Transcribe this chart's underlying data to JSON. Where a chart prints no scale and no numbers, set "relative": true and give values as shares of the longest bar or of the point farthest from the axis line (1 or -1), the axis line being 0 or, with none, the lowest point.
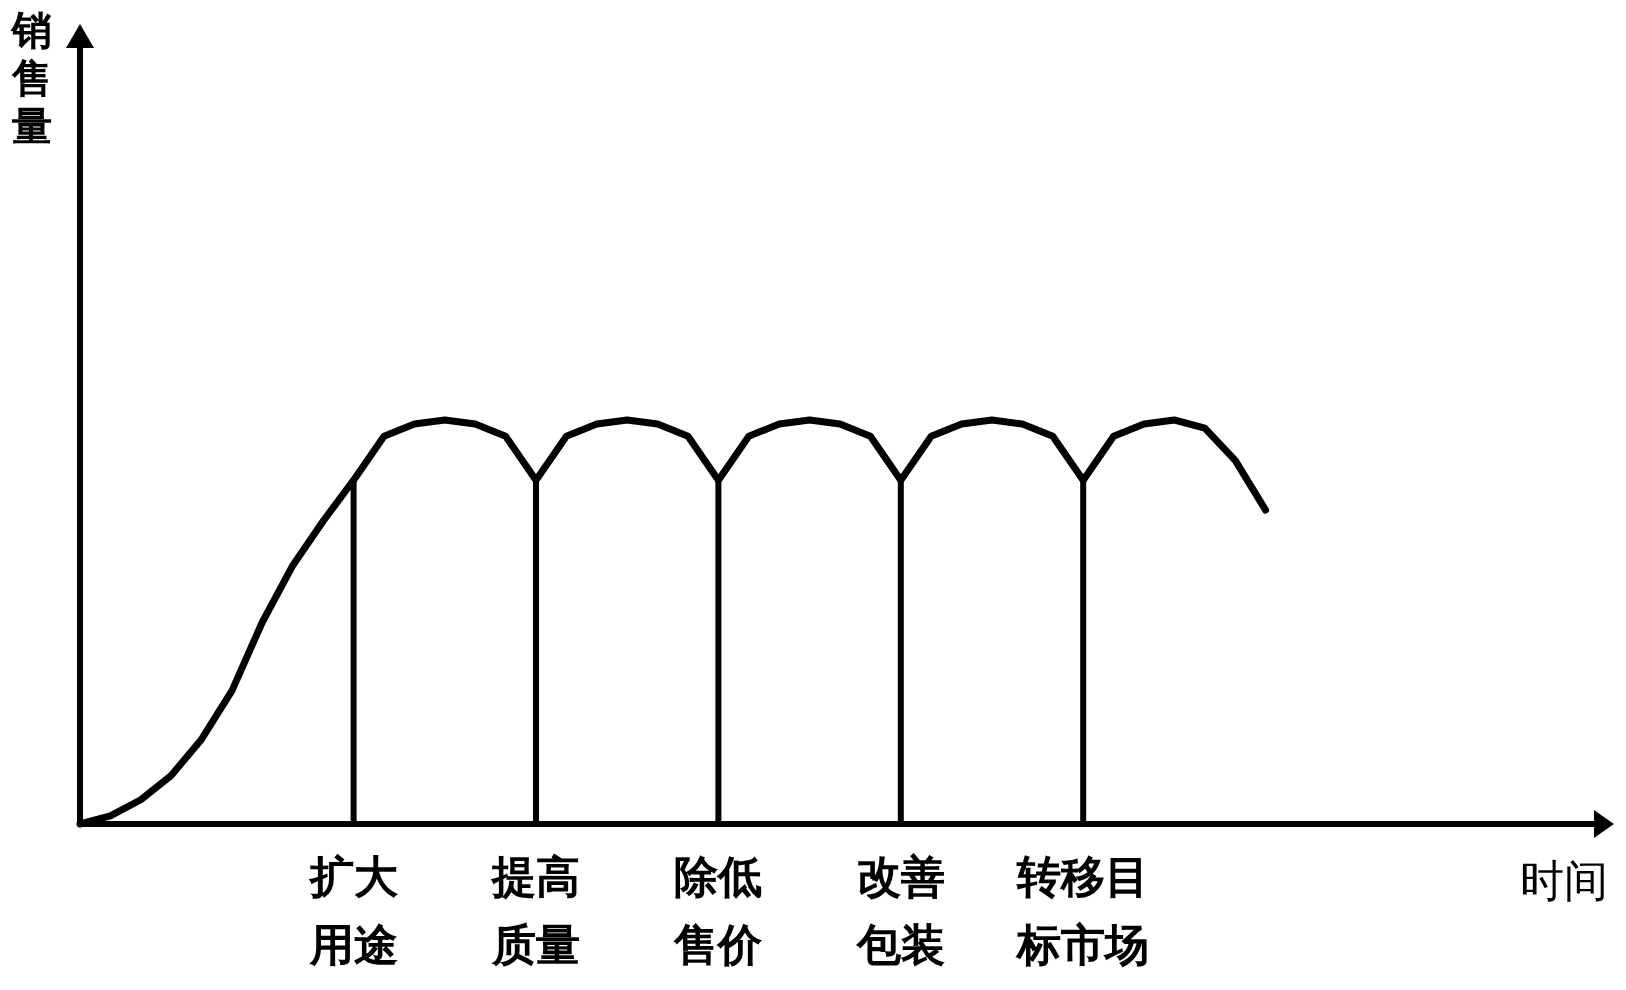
{
  "chart_data": {
    "type": "line",
    "relative": true,
    "annotations": [
      "销售量",
      "时间"
    ],
    "categories": [
      null,
      null,
      null,
      null,
      null,
      null,
      null,
      null,
      null,
      "扩大用途",
      null,
      null,
      null,
      null,
      null,
      "提高质量",
      null,
      null,
      null,
      null,
      null,
      "除低售价",
      null,
      null,
      null,
      null,
      null,
      "改善包装",
      null,
      null,
      null,
      null,
      null,
      "转移目标市场",
      null,
      null,
      null,
      null,
      null,
      null
    ],
    "series": [
      {
        "color": "#000000",
        "values": [
          0,
          0.02,
          0.06,
          0.12,
          0.21,
          0.33,
          0.5,
          0.64,
          0.75,
          0.851,
          0.96,
          0.99,
          1,
          0.99,
          0.96,
          0.851,
          0.96,
          0.99,
          1,
          0.99,
          0.96,
          0.851,
          0.96,
          0.99,
          1,
          0.99,
          0.96,
          0.851,
          0.96,
          0.99,
          1,
          0.99,
          0.96,
          0.851,
          0.96,
          0.99,
          1,
          0.98,
          0.9,
          0.777
        ]
      },
      {
        "type": "bar",
        "color": "#000000",
        "values": [
          null,
          null,
          null,
          null,
          null,
          null,
          null,
          null,
          null,
          0.851,
          null,
          null,
          null,
          null,
          null,
          0.851,
          null,
          null,
          null,
          null,
          null,
          0.851,
          null,
          null,
          null,
          null,
          null,
          0.851,
          null,
          null,
          null,
          null,
          null,
          0.851,
          null,
          null,
          null,
          null,
          null,
          null
        ]
      }
    ]
  }
}
